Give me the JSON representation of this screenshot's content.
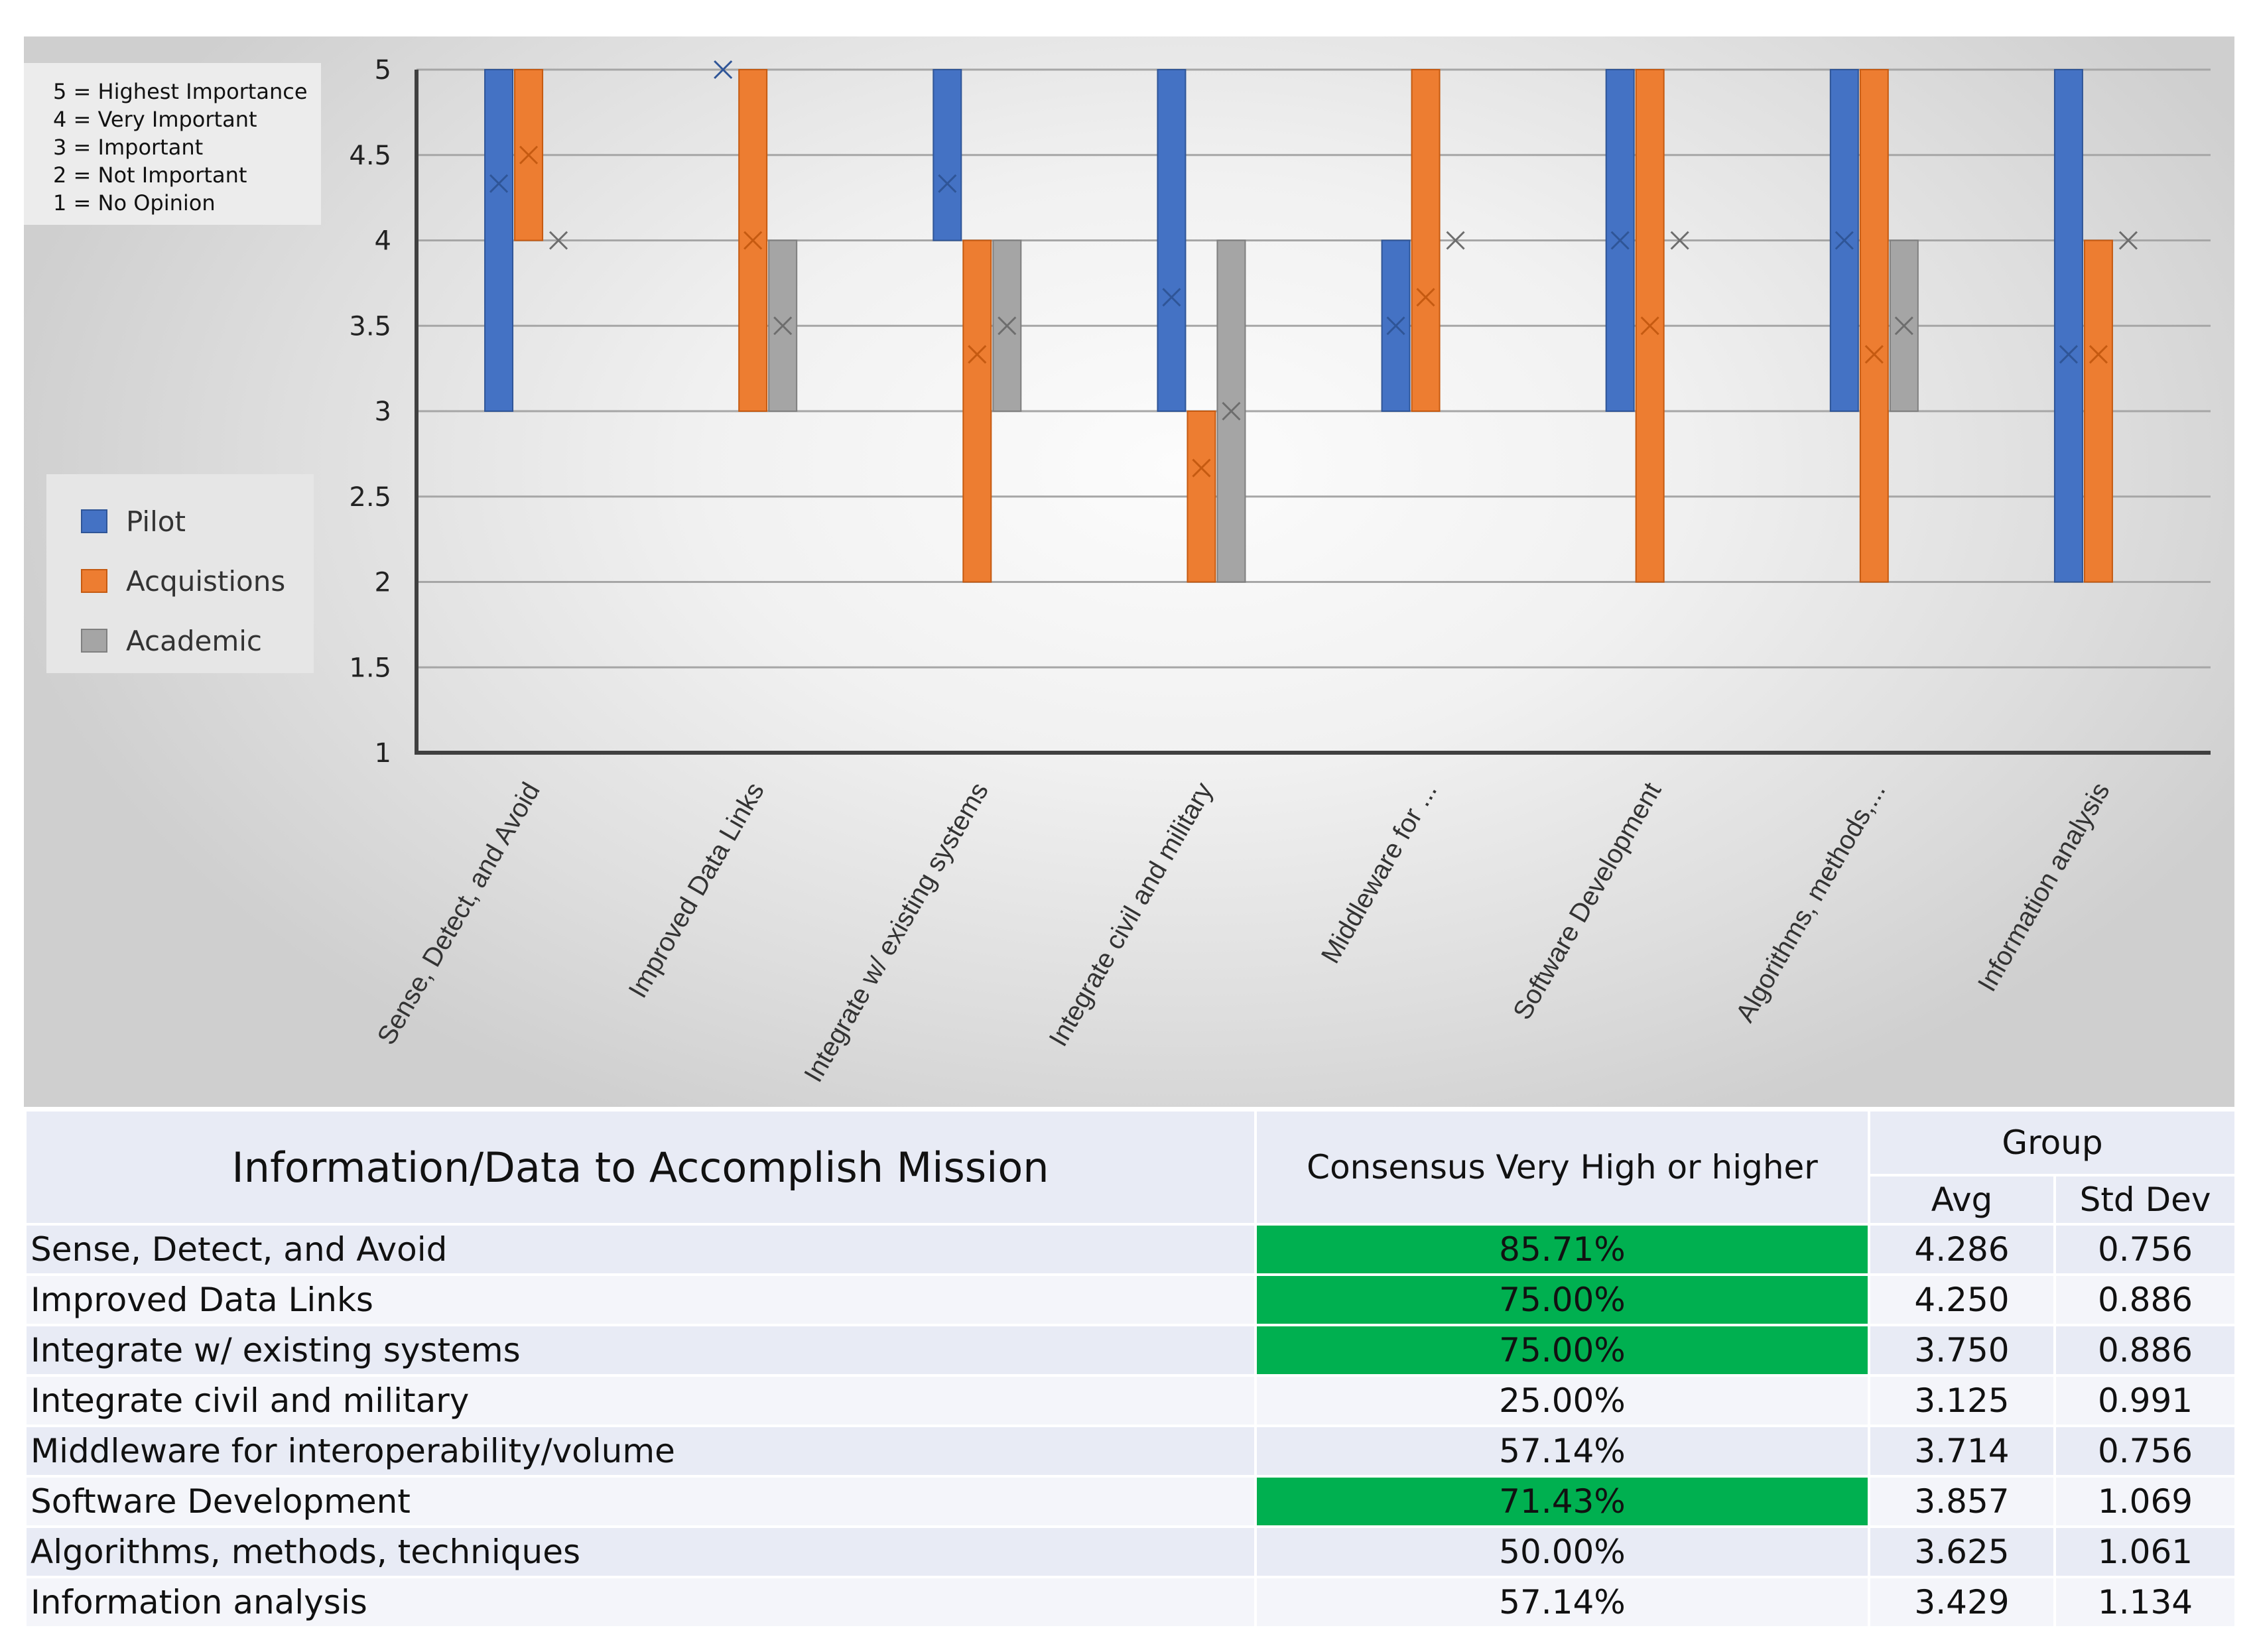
{
  "chart_data": {
    "type": "floating-bar",
    "ylim": [
      1,
      5
    ],
    "yticks": [
      "1",
      "1.5",
      "2",
      "2.5",
      "3",
      "3.5",
      "4",
      "4.5",
      "5"
    ],
    "categories": [
      "Sense, Detect, and Avoid",
      "Improved Data Links",
      "Integrate w/ existing systems",
      "Integrate civil and military",
      "Middleware for ...",
      "Software Development",
      "Algorithms, methods,...",
      "Information analysis"
    ],
    "series": [
      {
        "name": "Pilot",
        "color": "#4472c4",
        "low": [
          3,
          5,
          4,
          3,
          3,
          3,
          3,
          2
        ],
        "high": [
          5,
          5,
          5,
          5,
          4,
          5,
          5,
          5
        ],
        "mean": [
          4.333,
          5,
          4.333,
          3.667,
          3.5,
          4,
          4,
          3.333
        ]
      },
      {
        "name": "Acquistions",
        "color": "#ed7d31",
        "low": [
          4,
          3,
          2,
          2,
          3,
          2,
          2,
          2
        ],
        "high": [
          5,
          5,
          4,
          3,
          5,
          5,
          5,
          4
        ],
        "mean": [
          4.5,
          4,
          3.333,
          2.667,
          3.667,
          3.5,
          3.333,
          3.333
        ]
      },
      {
        "name": "Academic",
        "color": "#a5a5a5",
        "low": [
          4,
          3,
          3,
          2,
          4,
          4,
          3,
          4
        ],
        "high": [
          4,
          4,
          4,
          4,
          4,
          4,
          4,
          4
        ],
        "mean": [
          4,
          3.5,
          3.5,
          3,
          4,
          4,
          3.5,
          4
        ]
      }
    ]
  },
  "scale_legend": [
    "5 = Highest Importance",
    "4 = Very Important",
    "3 = Important",
    "2 = Not Important",
    "1 = No Opinion"
  ],
  "legend": [
    "Pilot",
    "Acquistions",
    "Academic"
  ],
  "table": {
    "title": "Information/Data to Accomplish Mission",
    "consensus_header": "Consensus Very High or higher",
    "group_header": "Group",
    "avg_header": "Avg",
    "std_header": "Std Dev",
    "highlight_color": "#00b050",
    "rows": [
      {
        "name": "Sense, Detect, and Avoid",
        "consensus": "85.71%",
        "avg": "4.286",
        "std": "0.756",
        "highlight": true
      },
      {
        "name": "Improved Data Links",
        "consensus": "75.00%",
        "avg": "4.250",
        "std": "0.886",
        "highlight": true
      },
      {
        "name": "Integrate w/ existing systems",
        "consensus": "75.00%",
        "avg": "3.750",
        "std": "0.886",
        "highlight": true
      },
      {
        "name": "Integrate civil and military",
        "consensus": "25.00%",
        "avg": "3.125",
        "std": "0.991",
        "highlight": false
      },
      {
        "name": "Middleware for interoperability/volume",
        "consensus": "57.14%",
        "avg": "3.714",
        "std": "0.756",
        "highlight": false
      },
      {
        "name": "Software Development",
        "consensus": "71.43%",
        "avg": "3.857",
        "std": "1.069",
        "highlight": true
      },
      {
        "name": "Algorithms, methods, techniques",
        "consensus": "50.00%",
        "avg": "3.625",
        "std": "1.061",
        "highlight": false
      },
      {
        "name": "Information analysis",
        "consensus": "57.14%",
        "avg": "3.429",
        "std": "1.134",
        "highlight": false
      }
    ]
  }
}
